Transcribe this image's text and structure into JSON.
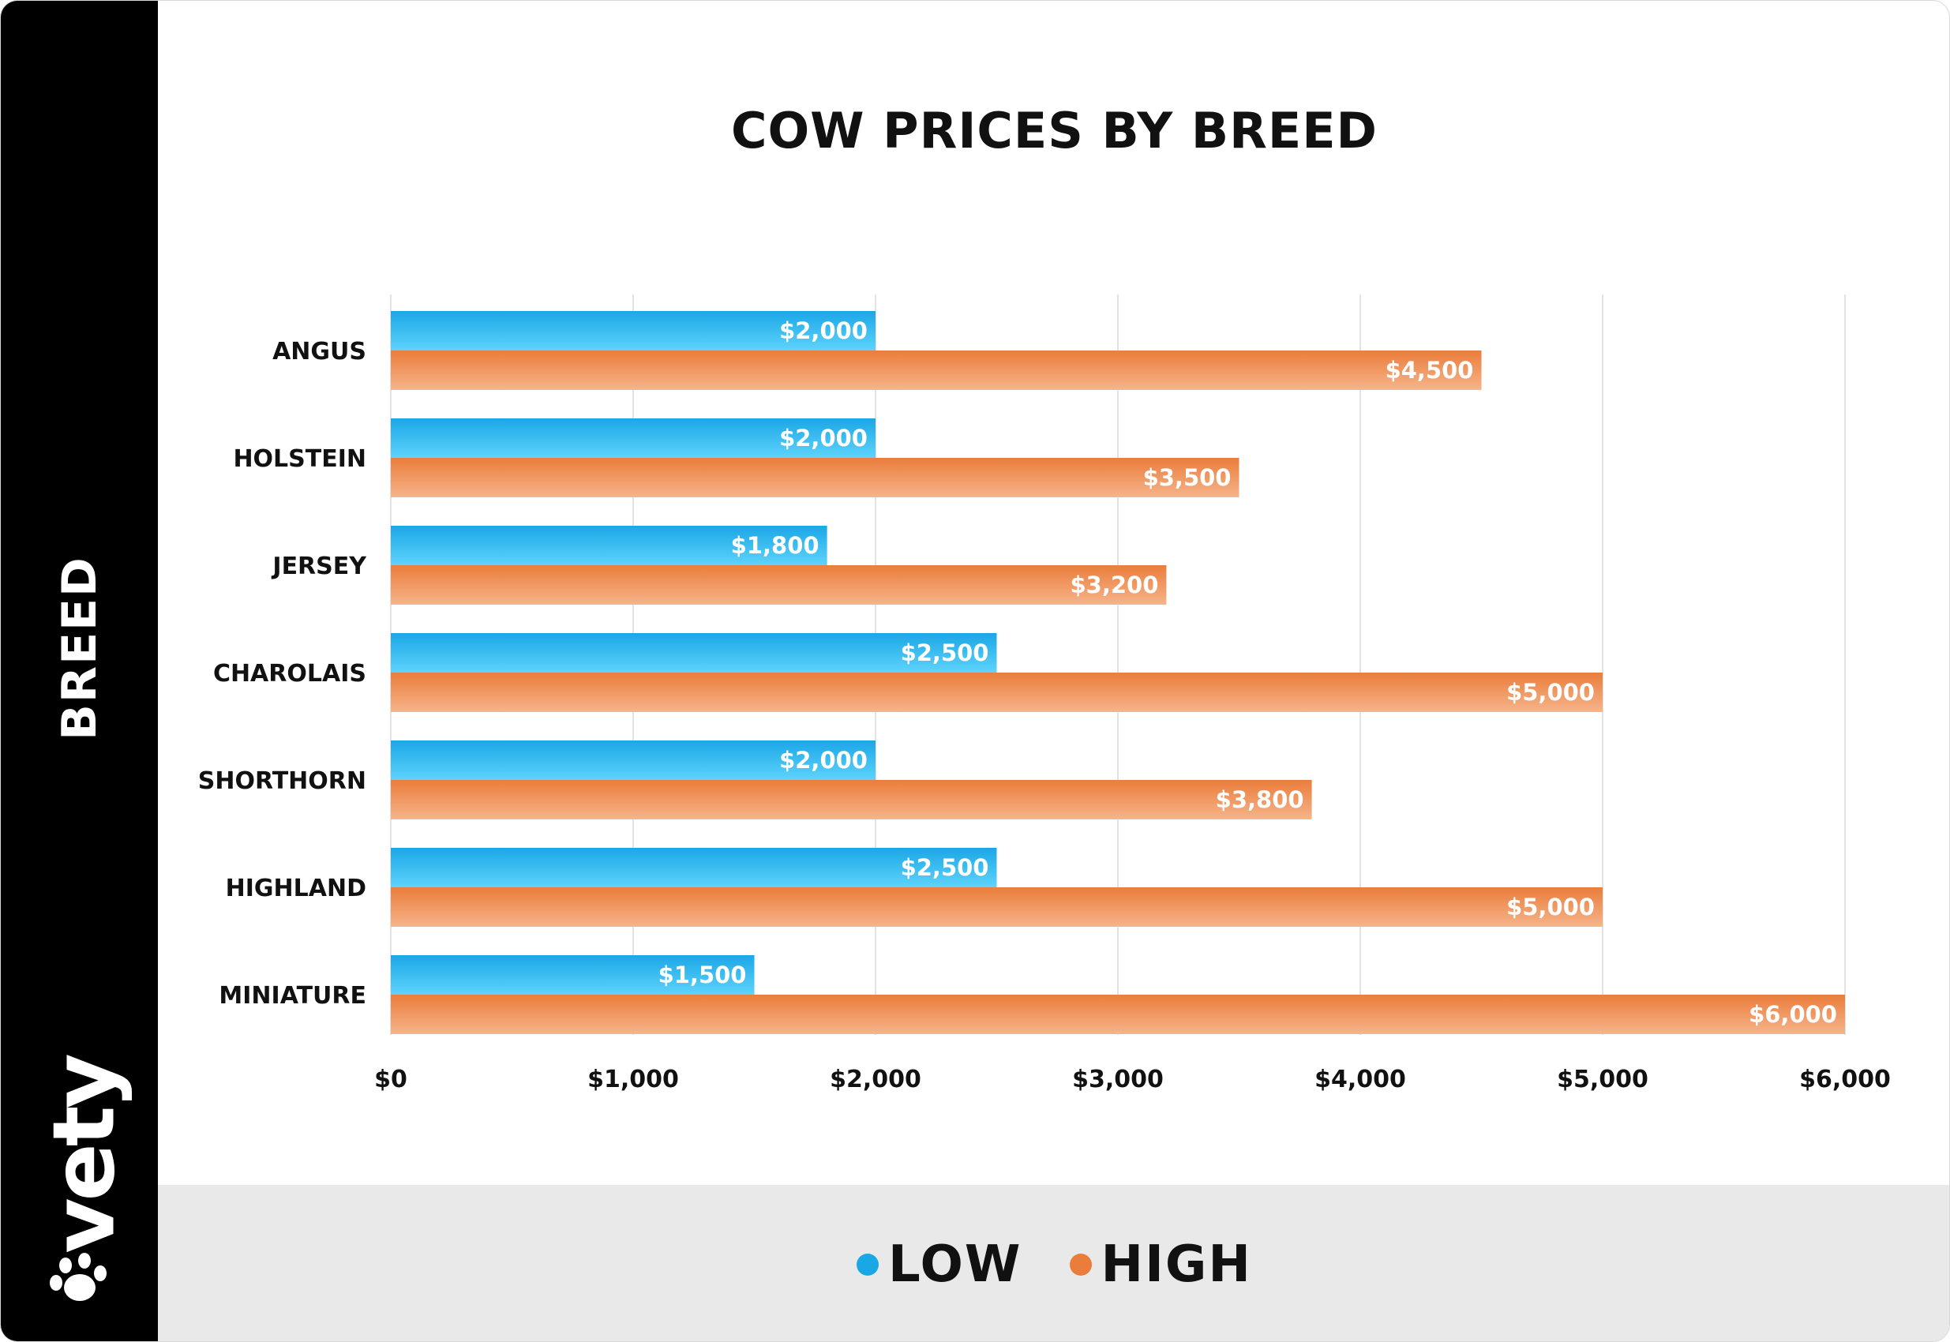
{
  "colors": {
    "low": "#1aa7e6",
    "high": "#ea7d3c",
    "sidebar": "#000000",
    "legend_band": "#e9e9e9"
  },
  "sidebar": {
    "axis_label": "BREED",
    "brand": "vety",
    "brand_icon": "paw-icon"
  },
  "chart_data": {
    "type": "bar",
    "orientation": "horizontal",
    "title": "COW PRICES BY BREED",
    "ylabel": "BREED",
    "xlabel": "",
    "categories": [
      "ANGUS",
      "HOLSTEIN",
      "JERSEY",
      "CHAROLAIS",
      "SHORTHORN",
      "HIGHLAND",
      "MINIATURE"
    ],
    "series": [
      {
        "name": "LOW",
        "values": [
          2000,
          2000,
          1800,
          2500,
          2000,
          2500,
          1500
        ],
        "labels": [
          "$2,000",
          "$2,000",
          "$1,800",
          "$2,500",
          "$2,000",
          "$2,500",
          "$1,500"
        ]
      },
      {
        "name": "HIGH",
        "values": [
          4500,
          3500,
          3200,
          5000,
          3800,
          5000,
          6000
        ],
        "labels": [
          "$4,500",
          "$3,500",
          "$3,200",
          "$5,000",
          "$3,800",
          "$5,000",
          "$6,000"
        ]
      }
    ],
    "xlim": [
      0,
      6000
    ],
    "xticks": [
      0,
      1000,
      2000,
      3000,
      4000,
      5000,
      6000
    ],
    "xtick_labels": [
      "$0",
      "$1,000",
      "$2,000",
      "$3,000",
      "$4,000",
      "$5,000",
      "$6,000"
    ],
    "grid": true,
    "legend_position": "bottom"
  },
  "legend": [
    {
      "label": "LOW"
    },
    {
      "label": "HIGH"
    }
  ]
}
